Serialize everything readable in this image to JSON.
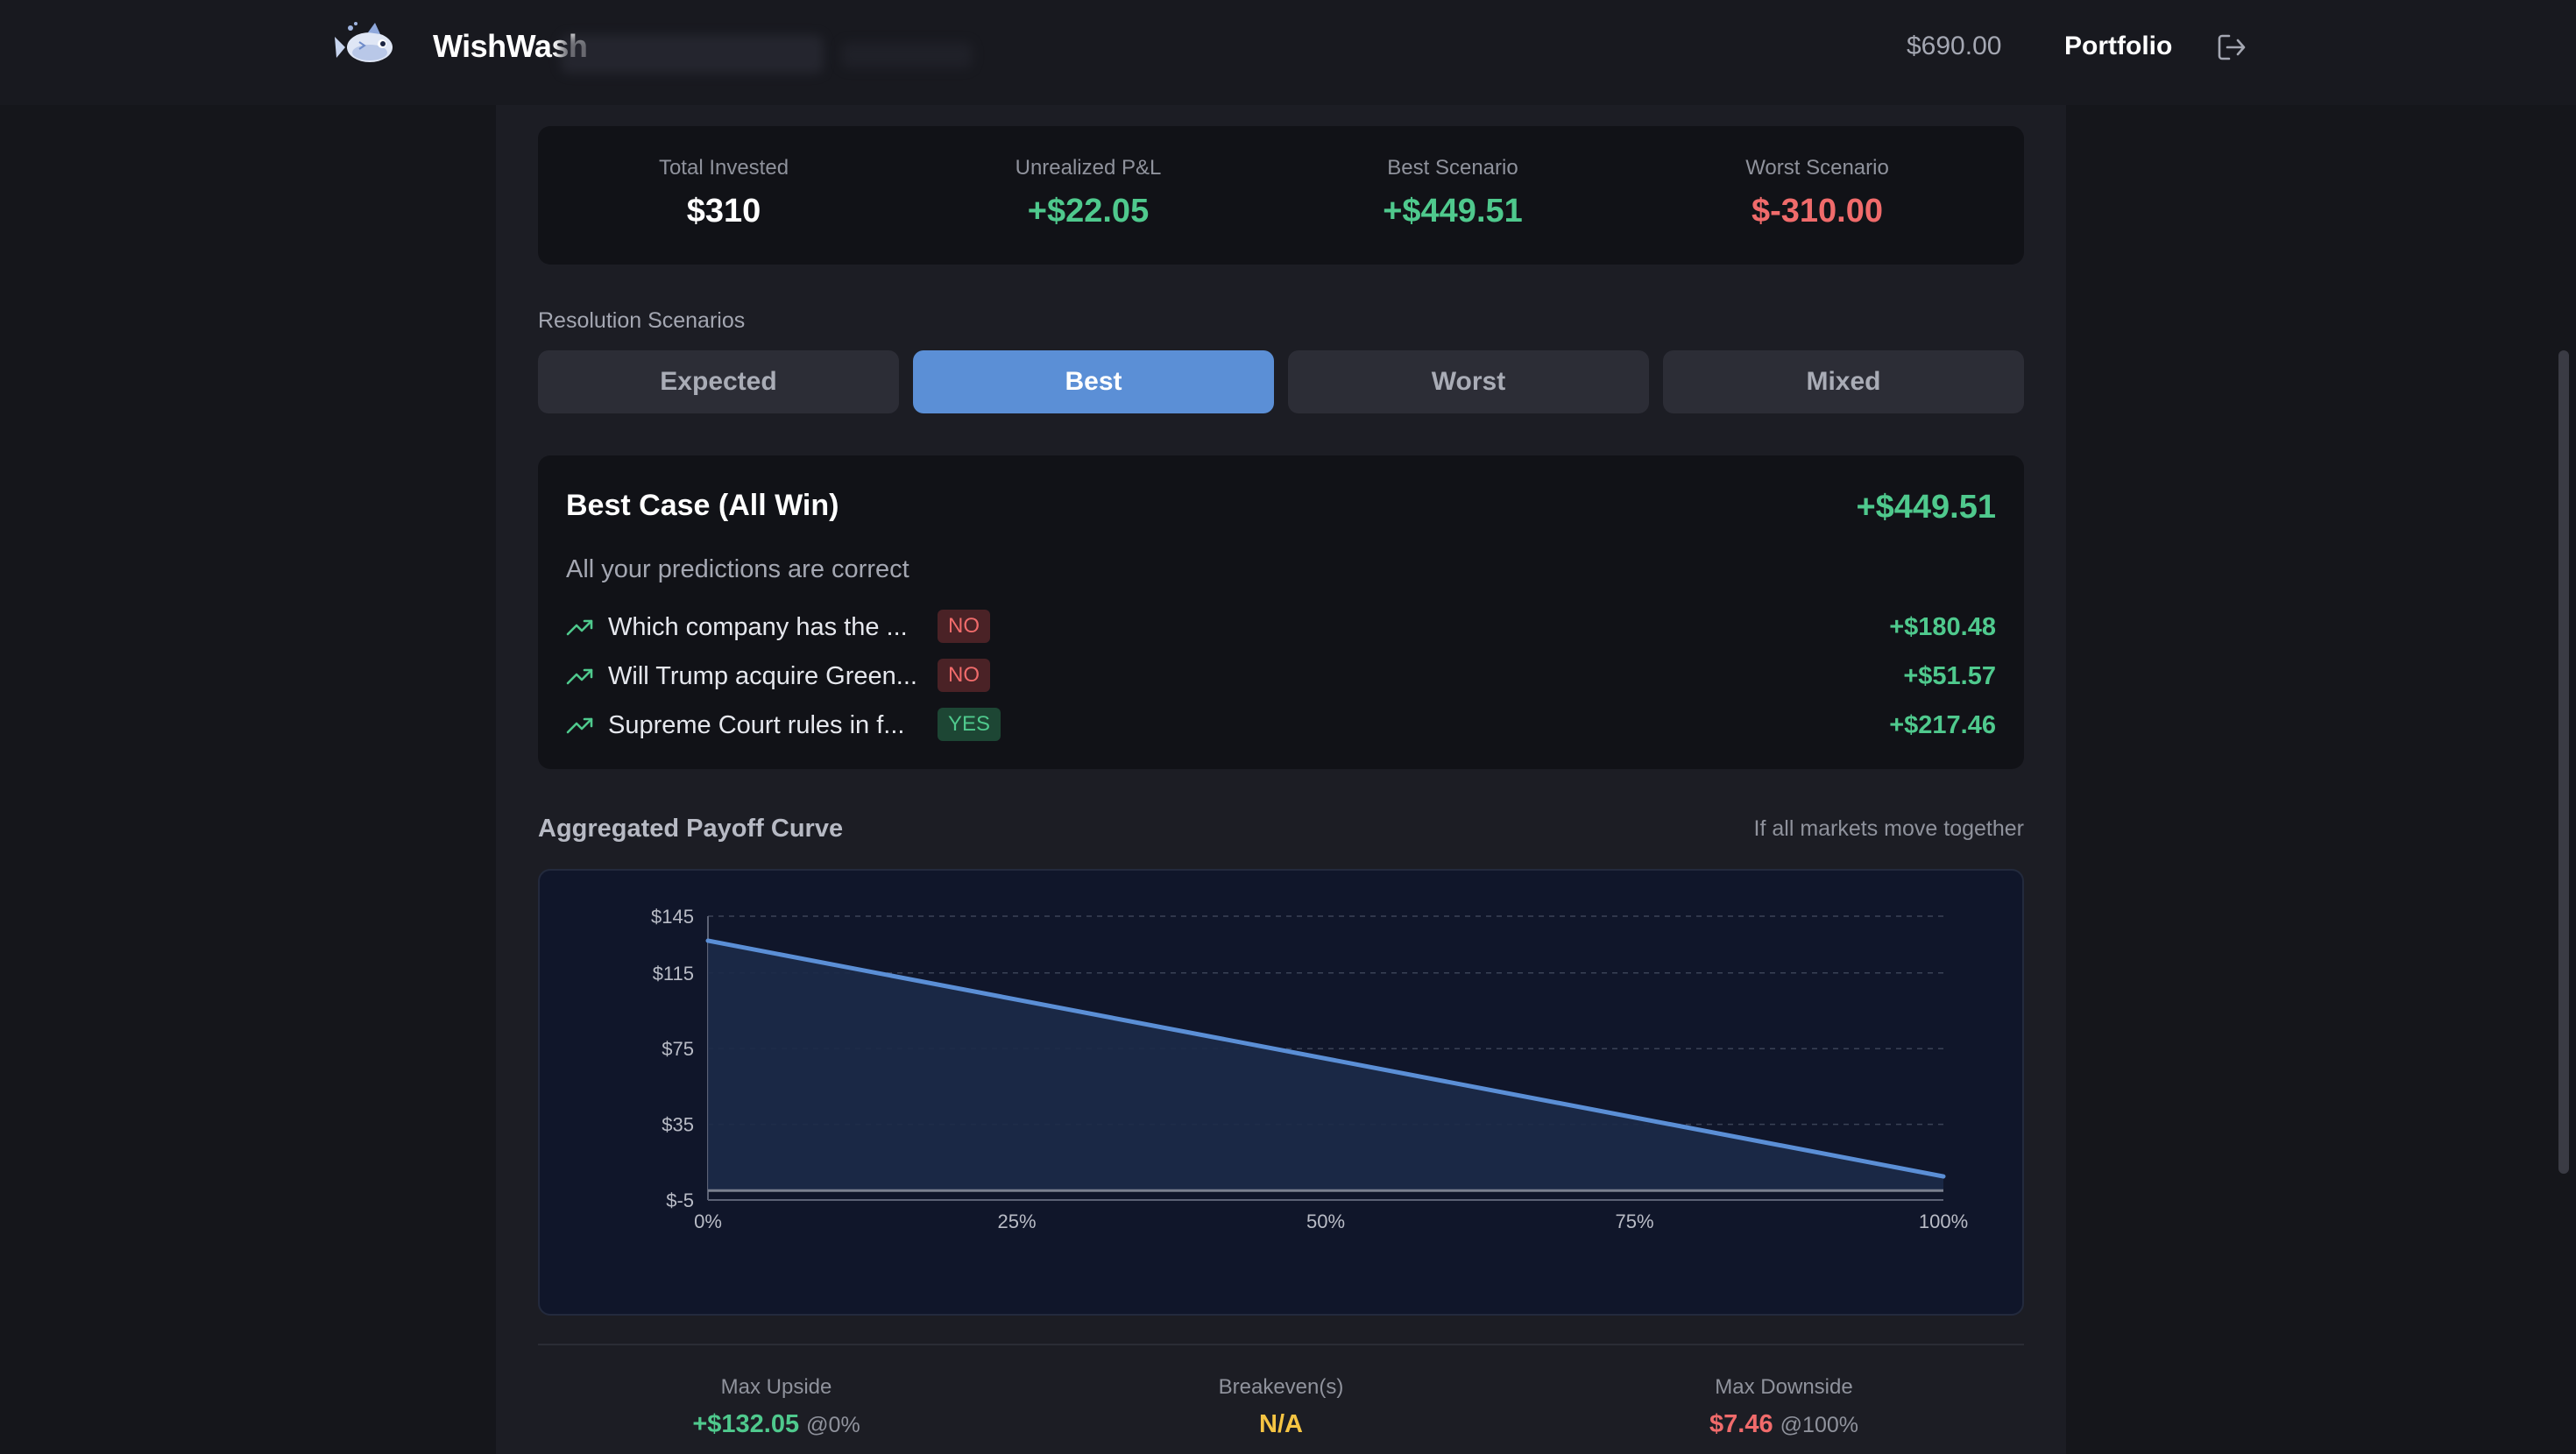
{
  "nav": {
    "brand": "WishWash",
    "balance": "$690.00",
    "portfolio": "Portfolio"
  },
  "summary": {
    "total_invested": {
      "label": "Total Invested",
      "value": "$310"
    },
    "unrealized_pnl": {
      "label": "Unrealized P&L",
      "value": "+$22.05"
    },
    "best_scenario": {
      "label": "Best Scenario",
      "value": "+$449.51"
    },
    "worst_scenario": {
      "label": "Worst Scenario",
      "value": "$-310.00"
    }
  },
  "scenarios": {
    "label": "Resolution Scenarios",
    "tabs": [
      "Expected",
      "Best",
      "Worst",
      "Mixed"
    ],
    "active": "Best"
  },
  "detail": {
    "title": "Best Case (All Win)",
    "total": "+$449.51",
    "subtitle": "All your predictions are correct",
    "rows": [
      {
        "text": "Which company has the ...",
        "badge": "NO",
        "value": "+$180.48"
      },
      {
        "text": "Will Trump acquire Green...",
        "badge": "NO",
        "value": "+$51.57"
      },
      {
        "text": "Supreme Court rules in f...",
        "badge": "YES",
        "value": "+$217.46"
      }
    ]
  },
  "curve": {
    "label": "Aggregated Payoff Curve",
    "note": "If all markets move together"
  },
  "chart_data": {
    "type": "area",
    "x": [
      0,
      100
    ],
    "y": [
      132.05,
      7.46
    ],
    "baseline": 0,
    "xlim": [
      0,
      100
    ],
    "ylim": [
      -5,
      145
    ],
    "xticks": [
      "0%",
      "25%",
      "50%",
      "75%",
      "100%"
    ],
    "yticks": [
      "$145",
      "$115",
      "$75",
      "$35",
      "$-5"
    ],
    "ytick_values": [
      145,
      115,
      75,
      35,
      -5
    ],
    "grid": true,
    "line_color": "#5b8fd6"
  },
  "bottom": {
    "max_upside": {
      "label": "Max Upside",
      "value": "+$132.05",
      "at": "@0%"
    },
    "breakeven": {
      "label": "Breakeven(s)",
      "value": "N/A"
    },
    "max_downside": {
      "label": "Max Downside",
      "value": "$7.46",
      "at": "@100%"
    }
  }
}
